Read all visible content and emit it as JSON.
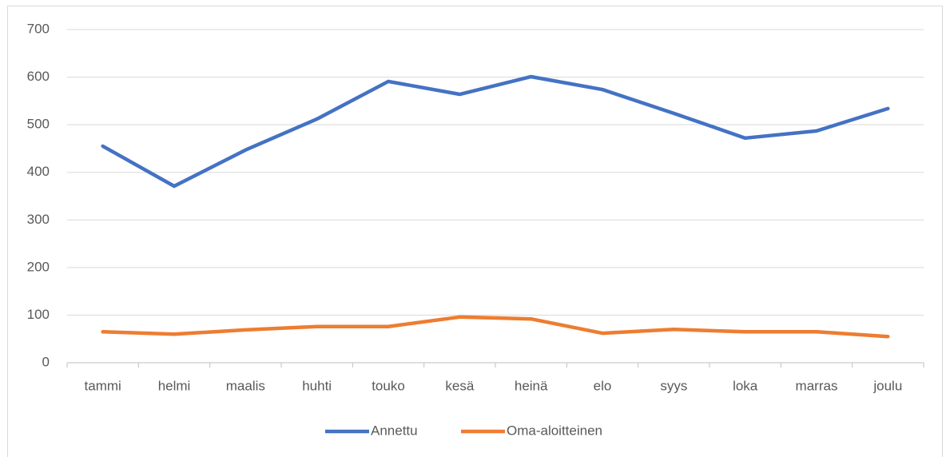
{
  "chart_data": {
    "type": "line",
    "categories": [
      "tammi",
      "helmi",
      "maalis",
      "huhti",
      "touko",
      "kesä",
      "heinä",
      "elo",
      "syys",
      "loka",
      "marras",
      "joulu"
    ],
    "series": [
      {
        "name": "Annettu",
        "color": "#4472c4",
        "values": [
          455,
          371,
          447,
          512,
          591,
          564,
          601,
          574,
          524,
          472,
          487,
          534
        ]
      },
      {
        "name": "Oma-aloitteinen",
        "color": "#ed7d31",
        "values": [
          65,
          60,
          69,
          76,
          76,
          96,
          92,
          62,
          70,
          65,
          65,
          55
        ]
      }
    ],
    "ylim": [
      0,
      700
    ],
    "yticks": [
      0,
      100,
      200,
      300,
      400,
      500,
      600,
      700
    ],
    "grid": true,
    "legend": "bottom"
  }
}
